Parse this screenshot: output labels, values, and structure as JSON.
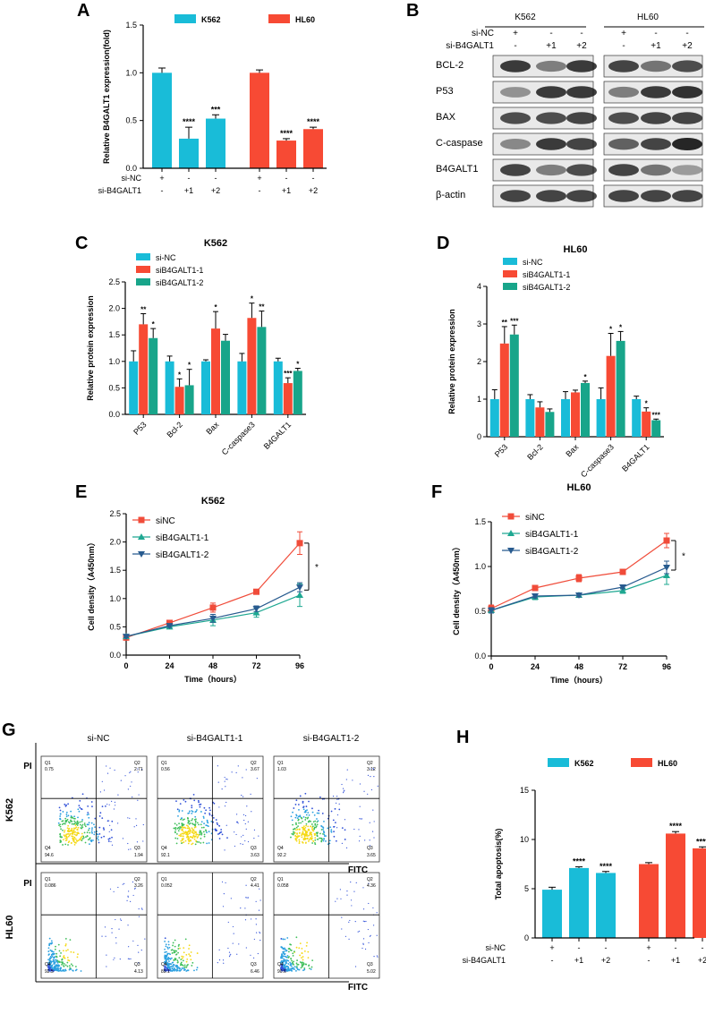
{
  "panels": {
    "A": "A",
    "B": "B",
    "C": "C",
    "D": "D",
    "E": "E",
    "F": "F",
    "G": "G",
    "H": "H"
  },
  "colors": {
    "cyan": "#19bcd8",
    "red": "#f74a34",
    "green": "#18a58a",
    "blue": "#2c6aa0",
    "lineRed": "#f04c3a",
    "lineGreen": "#1fa892",
    "lineBlue": "#285b8f"
  },
  "chart_data": [
    {
      "id": "A",
      "type": "bar",
      "title": "",
      "legend": [
        "K562",
        "HL60"
      ],
      "ylabel": "Relative B4GALT1 expression(fold)",
      "ylim": [
        0,
        1.5
      ],
      "yticks": [
        "0.0",
        "0.5",
        "1.0",
        "1.5"
      ],
      "groups": [
        {
          "name": "K562",
          "values": [
            1.0,
            0.31,
            0.52
          ],
          "errors": [
            0.05,
            0.12,
            0.04
          ],
          "sig": [
            "",
            "****",
            "***"
          ]
        },
        {
          "name": "HL60",
          "values": [
            1.0,
            0.29,
            0.41
          ],
          "errors": [
            0.03,
            0.02,
            0.02
          ],
          "sig": [
            "",
            "****",
            "****"
          ]
        }
      ],
      "rows": [
        {
          "label": "si-NC",
          "vals": [
            "+",
            "-",
            "-",
            "+",
            "-",
            "-"
          ]
        },
        {
          "label": "si-B4GALT1",
          "vals": [
            "-",
            "+1",
            "+2",
            "-",
            "+1",
            "+2"
          ]
        }
      ]
    },
    {
      "id": "C",
      "type": "bar",
      "title": "K562",
      "legend": [
        "si-NC",
        "siB4GALT1-1",
        "siB4GALT1-2"
      ],
      "ylabel": "Relative protein expression",
      "ylim": [
        0,
        2.5
      ],
      "yticks": [
        "0.0",
        "0.5",
        "1.0",
        "1.5",
        "2.0",
        "2.5"
      ],
      "categories": [
        "P53",
        "Bcl-2",
        "Bax",
        "C-caspase3",
        "B4GALT1"
      ],
      "series": [
        {
          "name": "si-NC",
          "values": [
            1.0,
            1.0,
            1.0,
            1.0,
            1.0
          ],
          "errors": [
            0.2,
            0.1,
            0.03,
            0.15,
            0.06
          ]
        },
        {
          "name": "siB4GALT1-1",
          "values": [
            1.7,
            0.52,
            1.62,
            1.82,
            0.59
          ],
          "errors": [
            0.2,
            0.15,
            0.32,
            0.28,
            0.1
          ]
        },
        {
          "name": "siB4GALT1-2",
          "values": [
            1.44,
            0.55,
            1.39,
            1.65,
            0.82
          ],
          "errors": [
            0.18,
            0.3,
            0.12,
            0.3,
            0.05
          ]
        }
      ],
      "sig": [
        [
          "",
          "**",
          "*"
        ],
        [
          "",
          "*",
          "*"
        ],
        [
          "",
          "*",
          ""
        ],
        [
          "",
          "*",
          "**"
        ],
        [
          "",
          "***",
          "*"
        ]
      ]
    },
    {
      "id": "D",
      "type": "bar",
      "title": "HL60",
      "legend": [
        "si-NC",
        "siB4GALT1-1",
        "siB4GALT1-2"
      ],
      "ylabel": "Relative protein expression",
      "ylim": [
        0,
        4
      ],
      "yticks": [
        "0",
        "1",
        "2",
        "3",
        "4"
      ],
      "categories": [
        "P53",
        "Bcl-2",
        "Bax",
        "C-caspase3",
        "B4GALT1"
      ],
      "series": [
        {
          "name": "si-NC",
          "values": [
            1.0,
            1.0,
            1.0,
            1.0,
            1.0
          ],
          "errors": [
            0.25,
            0.12,
            0.2,
            0.3,
            0.08
          ]
        },
        {
          "name": "siB4GALT1-1",
          "values": [
            2.48,
            0.78,
            1.18,
            2.15,
            0.67
          ],
          "errors": [
            0.45,
            0.15,
            0.06,
            0.6,
            0.1
          ]
        },
        {
          "name": "siB4GALT1-2",
          "values": [
            2.72,
            0.66,
            1.43,
            2.55,
            0.44
          ],
          "errors": [
            0.25,
            0.08,
            0.05,
            0.25,
            0.03
          ]
        }
      ],
      "sig": [
        [
          "",
          "**",
          "***"
        ],
        [
          "",
          "",
          ""
        ],
        [
          "",
          "",
          "*"
        ],
        [
          "",
          "*",
          "*"
        ],
        [
          "",
          "*",
          "***"
        ]
      ]
    },
    {
      "id": "E",
      "type": "line",
      "title": "K562",
      "xlabel": "Time（hours）",
      "ylabel": "Cell density（A450nm）",
      "x": [
        0,
        24,
        48,
        72,
        96
      ],
      "xticks": [
        "0",
        "24",
        "48",
        "72",
        "96"
      ],
      "ylim": [
        0,
        2.5
      ],
      "yticks": [
        "0.0",
        "0.5",
        "1.0",
        "1.5",
        "2.0",
        "2.5"
      ],
      "series": [
        {
          "name": "siNC",
          "marker": "square",
          "values": [
            0.31,
            0.57,
            0.84,
            1.12,
            1.98
          ],
          "errors": [
            0.03,
            0.03,
            0.08,
            0.02,
            0.2
          ]
        },
        {
          "name": "siB4GALT1-1",
          "marker": "triangle",
          "values": [
            0.33,
            0.5,
            0.62,
            0.75,
            1.06
          ],
          "errors": [
            0.02,
            0.03,
            0.1,
            0.08,
            0.2
          ]
        },
        {
          "name": "siB4GALT1-2",
          "marker": "triangle-down",
          "values": [
            0.33,
            0.52,
            0.65,
            0.82,
            1.2
          ],
          "errors": [
            0.02,
            0.03,
            0.07,
            0.05,
            0.08
          ]
        }
      ],
      "sig": "*"
    },
    {
      "id": "F",
      "type": "line",
      "title": "HL60",
      "xlabel": "Time（hours）",
      "ylabel": "Cell density（A450nm）",
      "x": [
        0,
        24,
        48,
        72,
        96
      ],
      "xticks": [
        "0",
        "24",
        "48",
        "72",
        "96"
      ],
      "ylim": [
        0,
        1.5
      ],
      "yticks": [
        "0.0",
        "0.5",
        "1.0",
        "1.5"
      ],
      "series": [
        {
          "name": "siNC",
          "marker": "square",
          "values": [
            0.53,
            0.76,
            0.87,
            0.94,
            1.29
          ],
          "errors": [
            0.04,
            0.02,
            0.04,
            0.02,
            0.08
          ]
        },
        {
          "name": "siB4GALT1-1",
          "marker": "triangle",
          "values": [
            0.51,
            0.66,
            0.68,
            0.73,
            0.9
          ],
          "errors": [
            0.03,
            0.03,
            0.02,
            0.03,
            0.1
          ]
        },
        {
          "name": "siB4GALT1-2",
          "marker": "triangle-down",
          "values": [
            0.51,
            0.67,
            0.68,
            0.77,
            0.99
          ],
          "errors": [
            0.03,
            0.02,
            0.02,
            0.02,
            0.07
          ]
        }
      ],
      "sig": "*"
    },
    {
      "id": "H",
      "type": "bar",
      "title": "",
      "legend": [
        "K562",
        "HL60"
      ],
      "ylabel": "Total apoptosis(%)",
      "ylim": [
        0,
        15
      ],
      "yticks": [
        "0",
        "5",
        "10",
        "15"
      ],
      "groups": [
        {
          "name": "K562",
          "values": [
            4.9,
            7.1,
            6.6
          ],
          "errors": [
            0.25,
            0.12,
            0.15
          ],
          "sig": [
            "",
            "****",
            "****"
          ]
        },
        {
          "name": "HL60",
          "values": [
            7.5,
            10.6,
            9.1
          ],
          "errors": [
            0.15,
            0.2,
            0.15
          ],
          "sig": [
            "",
            "****",
            "****"
          ]
        }
      ],
      "rows": [
        {
          "label": "si-NC",
          "vals": [
            "+",
            "-",
            "-",
            "+",
            "-",
            "-"
          ]
        },
        {
          "label": "si-B4GALT1",
          "vals": [
            "-",
            "+1",
            "+2",
            "-",
            "+1",
            "+2"
          ]
        }
      ]
    }
  ],
  "blot": {
    "header_k562": "K562",
    "header_hl60": "HL60",
    "rows": [
      {
        "label": "si-NC",
        "vals": [
          "+",
          "-",
          "-",
          "+",
          "-",
          "-"
        ]
      },
      {
        "label": "si-B4GALT1",
        "vals": [
          "-",
          "+1",
          "+2",
          "-",
          "+1",
          "+2"
        ]
      }
    ],
    "proteins": [
      "BCL-2",
      "P53",
      "BAX",
      "C-caspase",
      "B4GALT1",
      "β-actin"
    ]
  },
  "flow": {
    "columns": [
      "si-NC",
      "si-B4GALT1-1",
      "si-B4GALT1-2"
    ],
    "row_labels": [
      "K562",
      "HL60"
    ],
    "yaxis": "PI",
    "xaxis": "FITC",
    "quadrants": [
      [
        [
          "0.75",
          "2.71",
          "94.6",
          "1.94"
        ],
        [
          "0.56",
          "3.67",
          "92.1",
          "3.63"
        ],
        [
          "1.03",
          "3.12",
          "92.2",
          "3.65"
        ]
      ],
      [
        [
          "0.086",
          "3.26",
          "92.5",
          "4.13"
        ],
        [
          "0.052",
          "4.41",
          "89.1",
          "6.46"
        ],
        [
          "0.058",
          "4.36",
          "90.6",
          "5.02"
        ]
      ]
    ],
    "qnames": [
      "Q1",
      "Q2",
      "Q4",
      "Q3"
    ]
  }
}
